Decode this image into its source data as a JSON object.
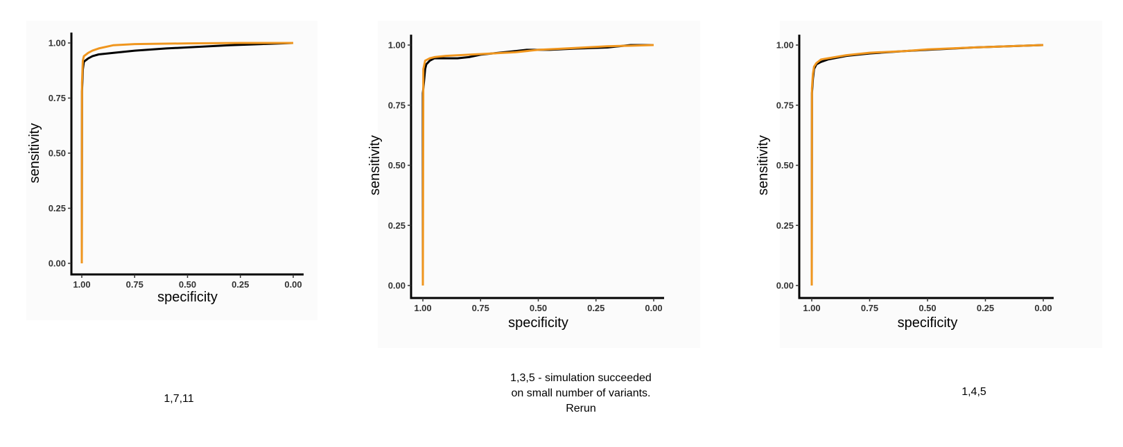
{
  "colors": {
    "black_series": "#000000",
    "orange_series": "#f0961e",
    "axis": "#000000"
  },
  "chart_data": [
    {
      "type": "line",
      "title": "",
      "xlabel": "specificity",
      "ylabel": "sensitivity",
      "x_reversed": true,
      "xlim": [
        1.0,
        0.0
      ],
      "ylim": [
        0.0,
        1.0
      ],
      "xticks": [
        "1.00",
        "0.75",
        "0.50",
        "0.25",
        "0.00"
      ],
      "yticks": [
        "0.00",
        "0.25",
        "0.50",
        "0.75",
        "1.00"
      ],
      "grid": false,
      "caption": "1,7,11",
      "series": [
        {
          "color": "#000000",
          "points": [
            [
              1.0,
              0.0
            ],
            [
              0.999,
              0.78
            ],
            [
              0.995,
              0.88
            ],
            [
              0.99,
              0.915
            ],
            [
              0.97,
              0.93
            ],
            [
              0.95,
              0.94
            ],
            [
              0.92,
              0.948
            ],
            [
              0.85,
              0.955
            ],
            [
              0.75,
              0.965
            ],
            [
              0.6,
              0.975
            ],
            [
              0.5,
              0.98
            ],
            [
              0.3,
              0.99
            ],
            [
              0.15,
              0.995
            ],
            [
              0.0,
              1.0
            ]
          ]
        },
        {
          "color": "#f0961e",
          "points": [
            [
              1.0,
              0.0
            ],
            [
              0.999,
              0.82
            ],
            [
              0.995,
              0.92
            ],
            [
              0.99,
              0.94
            ],
            [
              0.97,
              0.955
            ],
            [
              0.95,
              0.965
            ],
            [
              0.92,
              0.975
            ],
            [
              0.85,
              0.99
            ],
            [
              0.75,
              0.995
            ],
            [
              0.5,
              0.998
            ],
            [
              0.25,
              1.0
            ],
            [
              0.0,
              1.0
            ]
          ]
        }
      ]
    },
    {
      "type": "line",
      "title": "",
      "xlabel": "specificity",
      "ylabel": "sensitivity",
      "x_reversed": true,
      "xlim": [
        1.0,
        0.0
      ],
      "ylim": [
        0.0,
        1.0
      ],
      "xticks": [
        "1.00",
        "0.75",
        "0.50",
        "0.25",
        "0.00"
      ],
      "yticks": [
        "0.00",
        "0.25",
        "0.50",
        "0.75",
        "1.00"
      ],
      "grid": false,
      "caption": "1,3,5 - simulation succeeded\non small number of variants.\nRerun",
      "series": [
        {
          "color": "#000000",
          "points": [
            [
              1.0,
              0.0
            ],
            [
              1.0,
              0.8
            ],
            [
              0.995,
              0.85
            ],
            [
              0.99,
              0.9
            ],
            [
              0.985,
              0.92
            ],
            [
              0.97,
              0.935
            ],
            [
              0.95,
              0.945
            ],
            [
              0.85,
              0.945
            ],
            [
              0.8,
              0.95
            ],
            [
              0.75,
              0.96
            ],
            [
              0.7,
              0.965
            ],
            [
              0.6,
              0.975
            ],
            [
              0.55,
              0.98
            ],
            [
              0.45,
              0.98
            ],
            [
              0.35,
              0.985
            ],
            [
              0.2,
              0.99
            ],
            [
              0.15,
              0.995
            ],
            [
              0.1,
              1.0
            ],
            [
              0.0,
              1.0
            ]
          ]
        },
        {
          "color": "#f0961e",
          "points": [
            [
              1.0,
              0.0
            ],
            [
              0.998,
              0.9
            ],
            [
              0.99,
              0.935
            ],
            [
              0.97,
              0.945
            ],
            [
              0.95,
              0.95
            ],
            [
              0.9,
              0.955
            ],
            [
              0.8,
              0.96
            ],
            [
              0.7,
              0.965
            ],
            [
              0.6,
              0.97
            ],
            [
              0.5,
              0.98
            ],
            [
              0.4,
              0.985
            ],
            [
              0.3,
              0.99
            ],
            [
              0.2,
              0.995
            ],
            [
              0.1,
              0.997
            ],
            [
              0.0,
              1.0
            ]
          ]
        }
      ]
    },
    {
      "type": "line",
      "title": "",
      "xlabel": "specificity",
      "ylabel": "sensitivity",
      "x_reversed": true,
      "xlim": [
        1.0,
        0.0
      ],
      "ylim": [
        0.0,
        1.0
      ],
      "xticks": [
        "1.00",
        "0.75",
        "0.50",
        "0.25",
        "0.00"
      ],
      "yticks": [
        "0.00",
        "0.25",
        "0.50",
        "0.75",
        "1.00"
      ],
      "grid": false,
      "caption": "1,4,5",
      "series": [
        {
          "color": "#000000",
          "points": [
            [
              1.0,
              0.0
            ],
            [
              0.999,
              0.8
            ],
            [
              0.995,
              0.86
            ],
            [
              0.99,
              0.9
            ],
            [
              0.98,
              0.92
            ],
            [
              0.96,
              0.93
            ],
            [
              0.93,
              0.94
            ],
            [
              0.85,
              0.955
            ],
            [
              0.75,
              0.965
            ],
            [
              0.6,
              0.975
            ],
            [
              0.5,
              0.98
            ],
            [
              0.3,
              0.99
            ],
            [
              0.15,
              0.995
            ],
            [
              0.0,
              1.0
            ]
          ]
        },
        {
          "color": "#f0961e",
          "points": [
            [
              1.0,
              0.0
            ],
            [
              0.999,
              0.82
            ],
            [
              0.995,
              0.88
            ],
            [
              0.99,
              0.91
            ],
            [
              0.98,
              0.925
            ],
            [
              0.96,
              0.94
            ],
            [
              0.93,
              0.945
            ],
            [
              0.85,
              0.958
            ],
            [
              0.75,
              0.968
            ],
            [
              0.6,
              0.975
            ],
            [
              0.5,
              0.982
            ],
            [
              0.3,
              0.99
            ],
            [
              0.15,
              0.995
            ],
            [
              0.0,
              1.0
            ]
          ]
        }
      ]
    }
  ]
}
